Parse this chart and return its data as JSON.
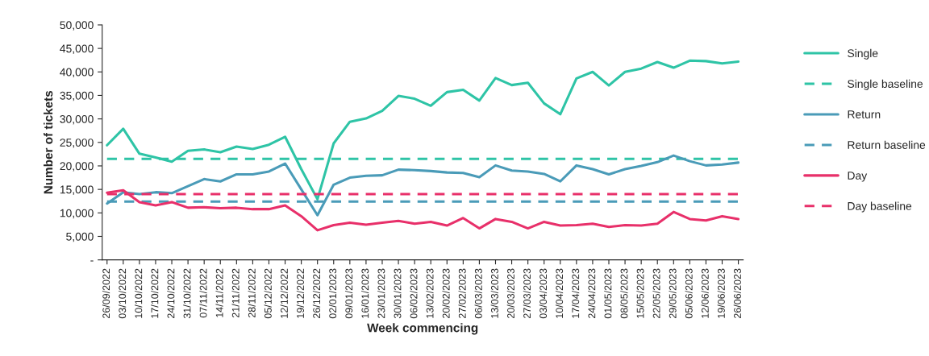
{
  "chart_data": {
    "type": "line",
    "xlabel": "Week commencing",
    "ylabel": "Number of tickets",
    "categories": [
      "26/09/2022",
      "03/10/2022",
      "10/10/2022",
      "17/10/2022",
      "24/10/2022",
      "31/10/2022",
      "07/11/2022",
      "14/11/2022",
      "21/11/2022",
      "28/11/2022",
      "05/12/2022",
      "12/12/2022",
      "19/12/2022",
      "26/12/2022",
      "02/01/2023",
      "09/01/2023",
      "16/01/2023",
      "23/01/2023",
      "30/01/2023",
      "06/02/2023",
      "13/02/2023",
      "20/02/2023",
      "27/02/2023",
      "06/03/2023",
      "13/03/2023",
      "20/03/2023",
      "27/03/2023",
      "03/04/2023",
      "10/04/2023",
      "17/04/2023",
      "24/04/2023",
      "01/05/2023",
      "08/05/2023",
      "15/05/2023",
      "22/05/2023",
      "29/05/2023",
      "05/06/2023",
      "12/06/2023",
      "19/06/2023",
      "26/06/2023"
    ],
    "series": [
      {
        "name": "Single",
        "color": "#2ec4a6",
        "line_style": "solid",
        "values": [
          24400,
          27900,
          22600,
          21800,
          20900,
          23200,
          23500,
          22900,
          24100,
          23600,
          24500,
          26200,
          19300,
          12900,
          24800,
          29400,
          30100,
          31700,
          34900,
          34300,
          32800,
          35700,
          36200,
          33900,
          38700,
          37200,
          37700,
          33300,
          31000,
          38600,
          40000,
          37100,
          40000,
          40700,
          42100,
          40900,
          42400,
          42300,
          41800,
          42200
        ]
      },
      {
        "name": "Single baseline",
        "color": "#2ec4a6",
        "line_style": "dashed",
        "values": [
          21500,
          21500,
          21500,
          21500,
          21500,
          21500,
          21500,
          21500,
          21500,
          21500,
          21500,
          21500,
          21500,
          21500,
          21500,
          21500,
          21500,
          21500,
          21500,
          21500,
          21500,
          21500,
          21500,
          21500,
          21500,
          21500,
          21500,
          21500,
          21500,
          21500,
          21500,
          21500,
          21500,
          21500,
          21500,
          21500,
          21500,
          21500,
          21500,
          21500
        ]
      },
      {
        "name": "Return",
        "color": "#4a9bb8",
        "line_style": "solid",
        "values": [
          12000,
          14400,
          14000,
          14400,
          14200,
          15700,
          17200,
          16700,
          18200,
          18200,
          18800,
          20500,
          15000,
          9500,
          16000,
          17500,
          17900,
          18000,
          19200,
          19100,
          18900,
          18600,
          18500,
          17600,
          20100,
          19000,
          18800,
          18300,
          16700,
          20100,
          19300,
          18200,
          19300,
          20000,
          20800,
          22200,
          21000,
          20100,
          20300,
          20700
        ]
      },
      {
        "name": "Return baseline",
        "color": "#4a9bb8",
        "line_style": "dashed",
        "values": [
          12400,
          12400,
          12400,
          12400,
          12400,
          12400,
          12400,
          12400,
          12400,
          12400,
          12400,
          12400,
          12400,
          12400,
          12400,
          12400,
          12400,
          12400,
          12400,
          12400,
          12400,
          12400,
          12400,
          12400,
          12400,
          12400,
          12400,
          12400,
          12400,
          12400,
          12400,
          12400,
          12400,
          12400,
          12400,
          12400,
          12400,
          12400,
          12400,
          12400
        ]
      },
      {
        "name": "Day",
        "color": "#e8306a",
        "line_style": "solid",
        "values": [
          14300,
          14800,
          12300,
          11600,
          12300,
          11100,
          11200,
          11000,
          11100,
          10800,
          10800,
          11600,
          9300,
          6300,
          7400,
          7900,
          7500,
          7900,
          8300,
          7700,
          8100,
          7300,
          8900,
          6700,
          8700,
          8100,
          6700,
          8100,
          7300,
          7400,
          7700,
          7000,
          7400,
          7300,
          7700,
          10200,
          8700,
          8400,
          9300,
          8700
        ]
      },
      {
        "name": "Day baseline",
        "color": "#e8306a",
        "line_style": "dashed",
        "values": [
          14000,
          14000,
          14000,
          14000,
          14000,
          14000,
          14000,
          14000,
          14000,
          14000,
          14000,
          14000,
          14000,
          14000,
          14000,
          14000,
          14000,
          14000,
          14000,
          14000,
          14000,
          14000,
          14000,
          14000,
          14000,
          14000,
          14000,
          14000,
          14000,
          14000,
          14000,
          14000,
          14000,
          14000,
          14000,
          14000,
          14000,
          14000,
          14000,
          14000
        ]
      }
    ],
    "ylim": [
      0,
      50000
    ],
    "yticks": [
      {
        "value": 0,
        "label": "-"
      },
      {
        "value": 5000,
        "label": "5,000"
      },
      {
        "value": 10000,
        "label": "10,000"
      },
      {
        "value": 15000,
        "label": "15,000"
      },
      {
        "value": 20000,
        "label": "20,000"
      },
      {
        "value": 25000,
        "label": "25,000"
      },
      {
        "value": 30000,
        "label": "30,000"
      },
      {
        "value": 35000,
        "label": "35,000"
      },
      {
        "value": 40000,
        "label": "40,000"
      },
      {
        "value": 45000,
        "label": "45,000"
      },
      {
        "value": 50000,
        "label": "50,000"
      }
    ],
    "grid": false,
    "legend": "right",
    "marker": "none"
  }
}
